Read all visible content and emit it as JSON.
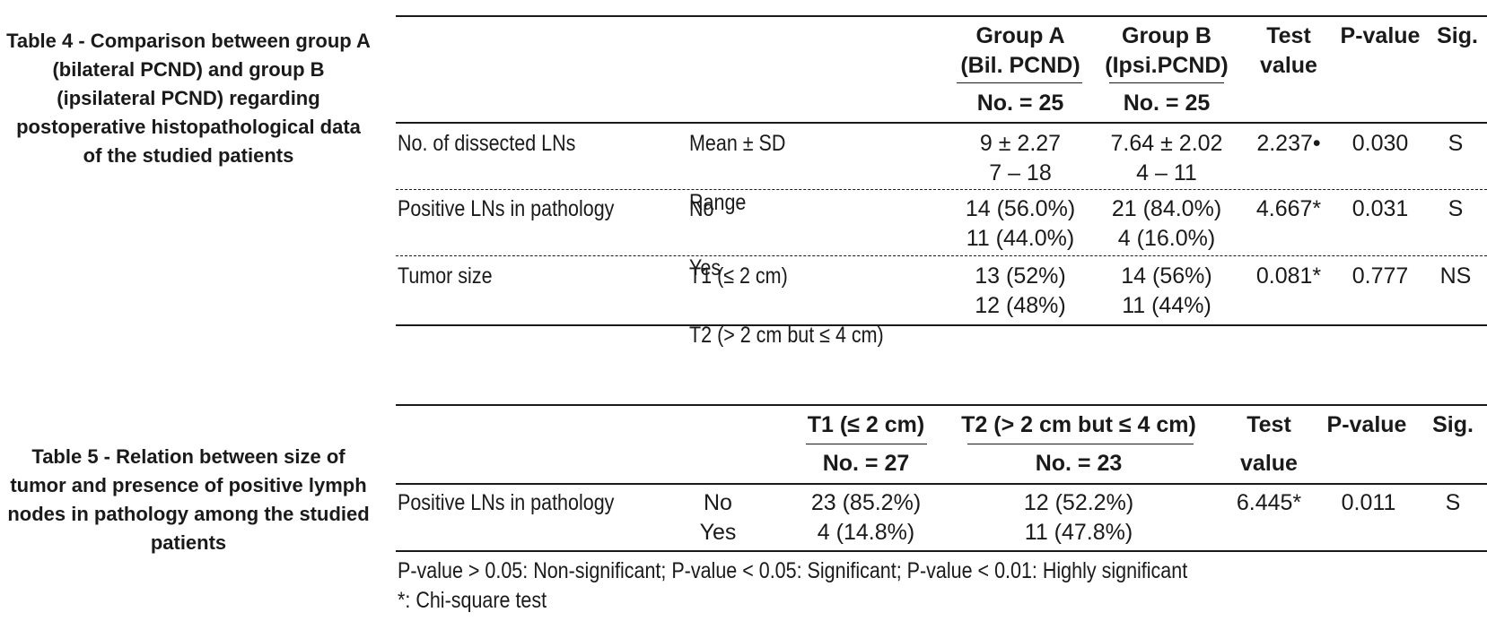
{
  "table4": {
    "caption_lines": [
      "Table 4 - Comparison between group A",
      "(bilateral PCND) and group B",
      "(ipsilateral PCND) regarding",
      "postoperative histopathological data",
      "of the studied patients"
    ],
    "headers": {
      "group_a": [
        "Group A",
        "(Bil. PCND)"
      ],
      "group_b": [
        "Group B",
        "(Ipsi.PCND)"
      ],
      "test": [
        "Test",
        "value"
      ],
      "pvalue": "P-value",
      "sig": "Sig.",
      "n_a": "No. = 25",
      "n_b": "No. = 25"
    },
    "rows": [
      {
        "label": "No. of dissected LNs",
        "sub": [
          "Mean ± SD",
          "Range"
        ],
        "a": [
          "9 ± 2.27",
          "7 – 18"
        ],
        "b": [
          "7.64 ± 2.02",
          "4 – 11"
        ],
        "test": "2.237•",
        "p": "0.030",
        "sig": "S"
      },
      {
        "label": "Positive LNs in pathology",
        "sub": [
          "No",
          "Yes"
        ],
        "a": [
          "14 (56.0%)",
          "11 (44.0%)"
        ],
        "b": [
          "21 (84.0%)",
          "4 (16.0%)"
        ],
        "test": "4.667*",
        "p": "0.031",
        "sig": "S"
      },
      {
        "label": "Tumor size",
        "sub": [
          "T1 (≤ 2 cm)",
          "T2 (> 2 cm but ≤ 4 cm)"
        ],
        "a": [
          "13 (52%)",
          "12 (48%)"
        ],
        "b": [
          "14 (56%)",
          "11 (44%)"
        ],
        "test": "0.081*",
        "p": "0.777",
        "sig": "NS"
      }
    ]
  },
  "table5": {
    "caption_lines": [
      "Table 5 - Relation between size of",
      "tumor and presence of positive lymph",
      "nodes in pathology among the studied",
      "patients"
    ],
    "headers": {
      "t1": "T1 (≤ 2 cm)",
      "t2": "T2 (> 2 cm but ≤ 4 cm)",
      "test": [
        "Test",
        "value"
      ],
      "pvalue": "P-value",
      "sig": "Sig.",
      "n_t1": "No. = 27",
      "n_t2": "No. = 23"
    },
    "row": {
      "label": "Positive LNs in pathology",
      "sub": [
        "No",
        "Yes"
      ],
      "t1": [
        "23 (85.2%)",
        "4 (14.8%)"
      ],
      "t2": [
        "12 (52.2%)",
        "11 (47.8%)"
      ],
      "test": "6.445*",
      "p": "0.011",
      "sig": "S"
    },
    "footnotes": [
      "P-value > 0.05: Non-significant; P-value < 0.05: Significant; P-value < 0.01: Highly significant",
      "*: Chi-square test"
    ]
  }
}
